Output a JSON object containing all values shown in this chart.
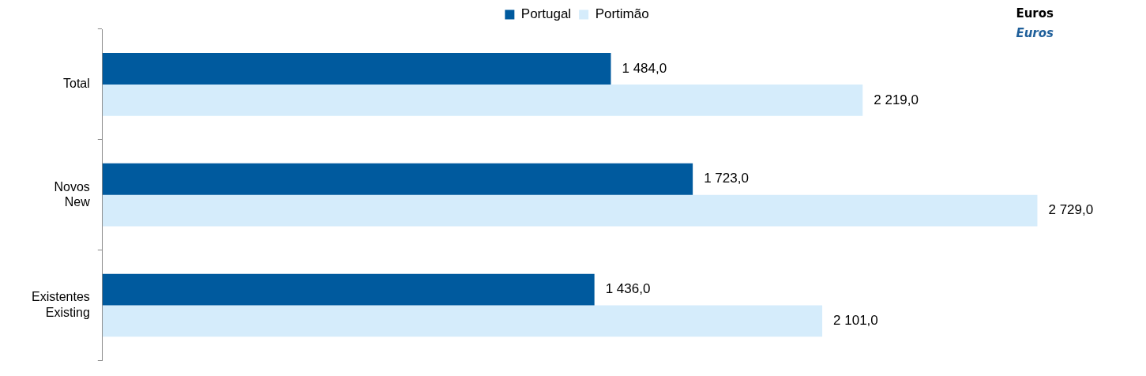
{
  "chart_data": {
    "type": "bar",
    "orientation": "horizontal",
    "categories": [
      "Total",
      "Novos\nNew",
      "Existentes\nExisting"
    ],
    "series": [
      {
        "name": "Portugal",
        "color": "#005a9e",
        "values": [
          1484.0,
          1723.0,
          1436.0
        ],
        "value_labels": [
          "1 484,0",
          "1 723,0",
          "1 436,0"
        ]
      },
      {
        "name": "Portimão",
        "color": "#d5ecfb",
        "values": [
          2219.0,
          2729.0,
          2101.0
        ],
        "value_labels": [
          "2 219,0",
          "2 729,0",
          "2 101,0"
        ]
      }
    ],
    "annotations": [
      "Euros",
      "Euros"
    ],
    "legend": "top",
    "grid": false
  }
}
